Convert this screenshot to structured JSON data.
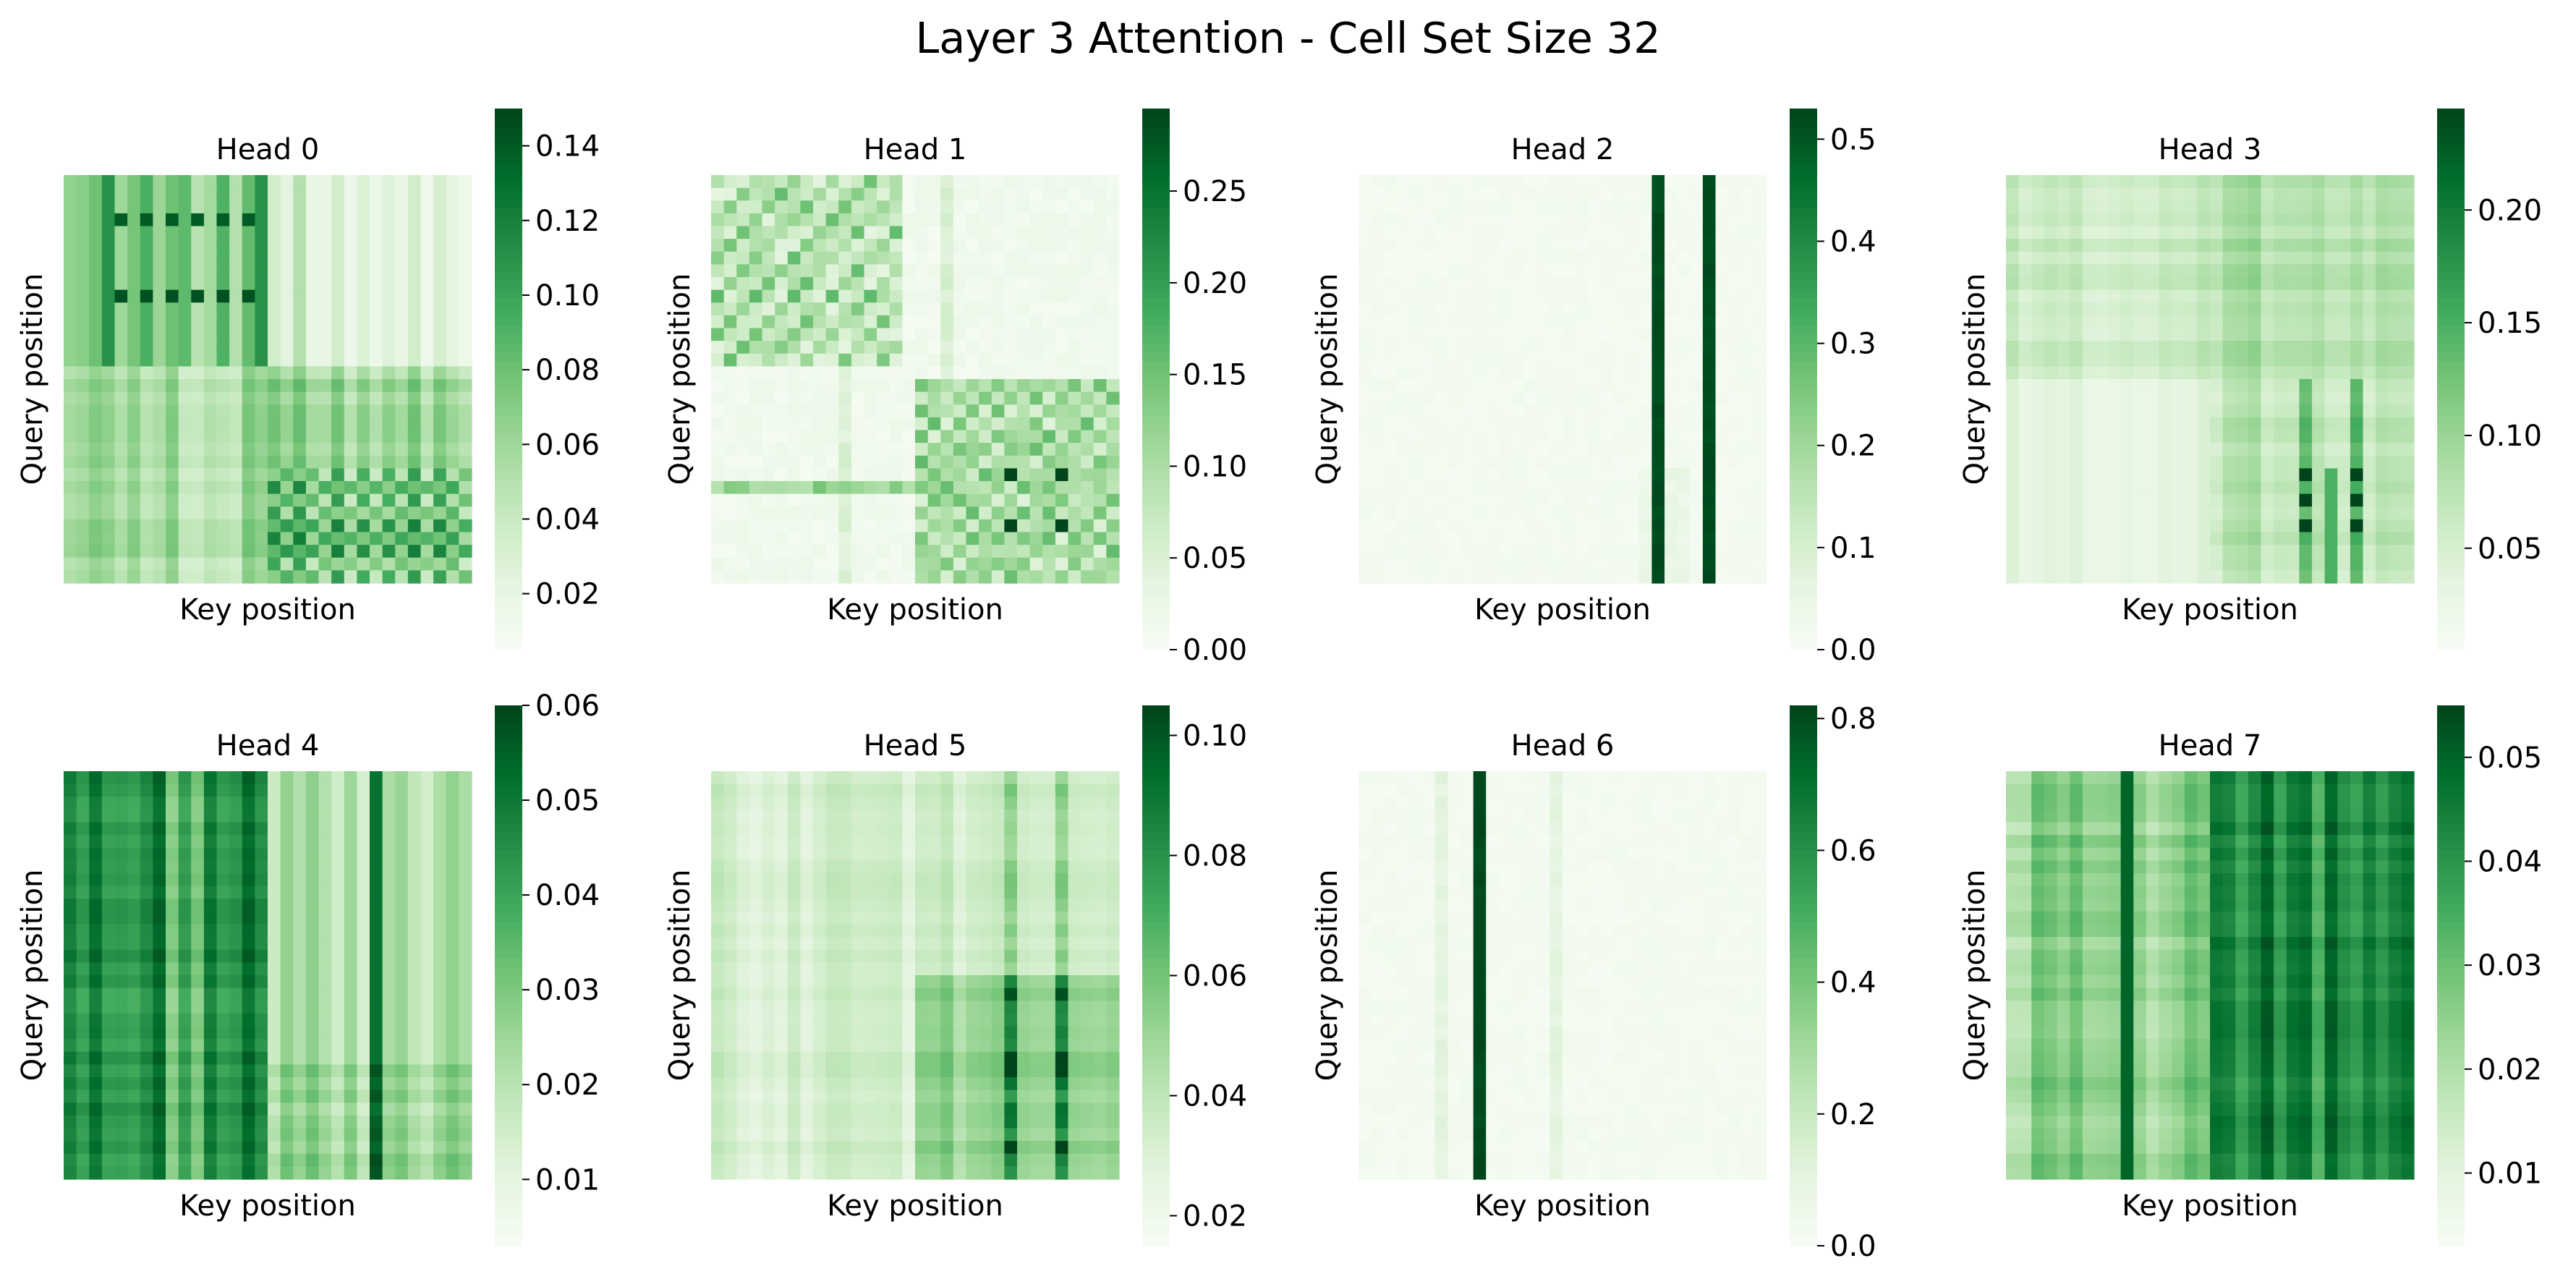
{
  "figure": {
    "title": "Layer 3 Attention - Cell Set Size 32"
  },
  "colormap": {
    "name": "Greens",
    "stops": [
      "#f7fcf5",
      "#e5f5e0",
      "#c7e9c0",
      "#a1d99b",
      "#74c476",
      "#41ab5d",
      "#238b45",
      "#006d2c",
      "#00441b"
    ]
  },
  "chart_data": [
    {
      "type": "heatmap",
      "title": "Head 0",
      "xlabel": "Key position",
      "ylabel": "Query position",
      "size": 32,
      "pattern": "block_checker",
      "vmin": 0.005,
      "vmax": 0.15,
      "colorbar_ticks": [
        0.02,
        0.04,
        0.06,
        0.08,
        0.1,
        0.12,
        0.14
      ],
      "colorbar_tick_labels": [
        "0.02",
        "0.04",
        "0.06",
        "0.08",
        "0.10",
        "0.12",
        "0.14"
      ]
    },
    {
      "type": "heatmap",
      "title": "Head 1",
      "xlabel": "Key position",
      "ylabel": "Query position",
      "size": 32,
      "pattern": "block_diag_checker",
      "vmin": 0.0,
      "vmax": 0.295,
      "colorbar_ticks": [
        0.0,
        0.05,
        0.1,
        0.15,
        0.2,
        0.25
      ],
      "colorbar_tick_labels": [
        "0.00",
        "0.05",
        "0.10",
        "0.15",
        "0.20",
        "0.25"
      ]
    },
    {
      "type": "heatmap",
      "title": "Head 2",
      "xlabel": "Key position",
      "ylabel": "Query position",
      "size": 32,
      "pattern": "columns",
      "vmin": 0.0,
      "vmax": 0.53,
      "strong_columns": [
        23,
        27
      ],
      "colorbar_ticks": [
        0.0,
        0.1,
        0.2,
        0.3,
        0.4,
        0.5
      ],
      "colorbar_tick_labels": [
        "0.0",
        "0.1",
        "0.2",
        "0.3",
        "0.4",
        "0.5"
      ]
    },
    {
      "type": "heatmap",
      "title": "Head 3",
      "xlabel": "Key position",
      "ylabel": "Query position",
      "size": 32,
      "pattern": "lower_right_checker",
      "vmin": 0.005,
      "vmax": 0.245,
      "colorbar_ticks": [
        0.05,
        0.1,
        0.15,
        0.2
      ],
      "colorbar_tick_labels": [
        "0.05",
        "0.10",
        "0.15",
        "0.20"
      ]
    },
    {
      "type": "heatmap",
      "title": "Head 4",
      "xlabel": "Key position",
      "ylabel": "Query position",
      "size": 32,
      "pattern": "left_dense",
      "vmin": 0.003,
      "vmax": 0.06,
      "colorbar_ticks": [
        0.01,
        0.02,
        0.03,
        0.04,
        0.05,
        0.06
      ],
      "colorbar_tick_labels": [
        "0.01",
        "0.02",
        "0.03",
        "0.04",
        "0.05",
        "0.06"
      ]
    },
    {
      "type": "heatmap",
      "title": "Head 5",
      "xlabel": "Key position",
      "ylabel": "Query position",
      "size": 32,
      "pattern": "lower_right_stripes",
      "vmin": 0.015,
      "vmax": 0.105,
      "colorbar_ticks": [
        0.02,
        0.04,
        0.06,
        0.08,
        0.1
      ],
      "colorbar_tick_labels": [
        "0.02",
        "0.04",
        "0.06",
        "0.08",
        "0.10"
      ]
    },
    {
      "type": "heatmap",
      "title": "Head 6",
      "xlabel": "Key position",
      "ylabel": "Query position",
      "size": 32,
      "pattern": "single_column",
      "vmin": 0.0,
      "vmax": 0.82,
      "strong_columns": [
        9
      ],
      "colorbar_ticks": [
        0.0,
        0.2,
        0.4,
        0.6,
        0.8
      ],
      "colorbar_tick_labels": [
        "0.0",
        "0.2",
        "0.4",
        "0.6",
        "0.8"
      ]
    },
    {
      "type": "heatmap",
      "title": "Head 7",
      "xlabel": "Key position",
      "ylabel": "Query position",
      "size": 32,
      "pattern": "right_dense",
      "vmin": 0.003,
      "vmax": 0.055,
      "colorbar_ticks": [
        0.01,
        0.02,
        0.03,
        0.04,
        0.05
      ],
      "colorbar_tick_labels": [
        "0.01",
        "0.02",
        "0.03",
        "0.04",
        "0.05"
      ]
    }
  ]
}
